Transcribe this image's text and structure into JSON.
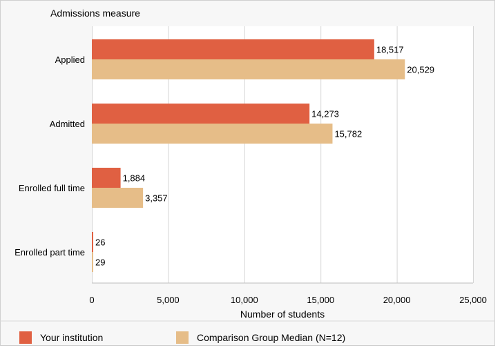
{
  "chart_data": {
    "type": "bar",
    "orientation": "horizontal",
    "title": "Admissions measure",
    "xlabel": "Number of students",
    "ylabel": "",
    "categories": [
      "Applied",
      "Admitted",
      "Enrolled full time",
      "Enrolled part time"
    ],
    "series": [
      {
        "name": "Your institution",
        "values": [
          18517,
          14273,
          1884,
          26
        ],
        "labels": [
          "18,517",
          "14,273",
          "1,884",
          "26"
        ],
        "color": "#e06042"
      },
      {
        "name": "Comparison Group Median (N=12)",
        "values": [
          20529,
          15782,
          3357,
          29
        ],
        "labels": [
          "20,529",
          "15,782",
          "3,357",
          "29"
        ],
        "color": "#e6bd88"
      }
    ],
    "xlim": [
      0,
      25000
    ],
    "xticks": [
      0,
      5000,
      10000,
      15000,
      20000,
      25000
    ],
    "xtick_labels": [
      "0",
      "5,000",
      "10,000",
      "15,000",
      "20,000",
      "25,000"
    ],
    "grid": true,
    "legend": "bottom"
  }
}
